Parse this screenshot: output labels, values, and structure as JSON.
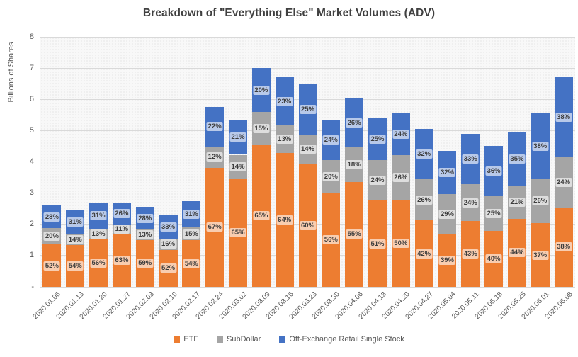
{
  "chart_data": {
    "type": "bar",
    "stacked": true,
    "title": "Breakdown of \"Everything Else\" Market Volumes (ADV)",
    "xlabel": "",
    "ylabel": "Billions of Shares",
    "ylim": [
      0,
      8
    ],
    "ytick_labels_bottom_to_top": [
      "-",
      "1",
      "2",
      "3",
      "4",
      "5",
      "6",
      "7",
      "8"
    ],
    "grid": "horizontal",
    "legend_position": "bottom",
    "categories": [
      "2020.01.06",
      "2020.01.13",
      "2020.01.20",
      "2020.01.27",
      "2020.02.03",
      "2020.02.10",
      "2020.02.17",
      "2020.02.24",
      "2020.03.02",
      "2020.03.09",
      "2020.03.16",
      "2020.03.23",
      "2020.03.30",
      "2020.04.06",
      "2020.04.13",
      "2020.04.20",
      "2020.04.27",
      "2020.05.04",
      "2020.05.11",
      "2020.05.18",
      "2020.05.25",
      "2020.06.01",
      "2020.06.08"
    ],
    "totals_billions": [
      2.6,
      2.45,
      2.7,
      2.7,
      2.55,
      2.3,
      2.75,
      5.75,
      5.35,
      7.0,
      6.7,
      6.5,
      5.35,
      6.05,
      5.4,
      5.55,
      5.05,
      4.35,
      4.9,
      4.5,
      4.95,
      5.55,
      6.7
    ],
    "series": [
      {
        "name": "ETF",
        "color": "#ED7D31",
        "pct": [
          52,
          54,
          56,
          63,
          59,
          52,
          54,
          67,
          65,
          65,
          64,
          60,
          56,
          55,
          51,
          50,
          42,
          39,
          43,
          40,
          44,
          37,
          38
        ],
        "pct_labels": [
          "52%",
          "54%",
          "56%",
          "63%",
          "59%",
          "52%",
          "54%",
          "67%",
          "65%",
          "65%",
          "64%",
          "60%",
          "56%",
          "55%",
          "51%",
          "50%",
          "42%",
          "39%",
          "43%",
          "40%",
          "44%",
          "37%",
          "38%"
        ],
        "values_billions": [
          1.35,
          1.32,
          1.51,
          1.7,
          1.5,
          1.2,
          1.49,
          3.85,
          3.48,
          4.55,
          4.29,
          3.9,
          3.0,
          3.33,
          2.75,
          2.78,
          2.12,
          1.7,
          2.11,
          1.8,
          2.18,
          2.05,
          2.55
        ]
      },
      {
        "name": "SubDollar",
        "color": "#A5A5A5",
        "pct": [
          20,
          14,
          13,
          11,
          13,
          16,
          15,
          12,
          14,
          15,
          13,
          14,
          20,
          18,
          24,
          26,
          26,
          29,
          24,
          25,
          21,
          26,
          24
        ],
        "pct_labels": [
          "20%",
          "14%",
          "13%",
          "11%",
          "13%",
          "16%",
          "15%",
          "12%",
          "14%",
          "15%",
          "13%",
          "14%",
          "20%",
          "18%",
          "24%",
          "26%",
          "26%",
          "29%",
          "24%",
          "25%",
          "21%",
          "26%",
          "24%"
        ],
        "values_billions": [
          0.52,
          0.34,
          0.35,
          0.3,
          0.33,
          0.37,
          0.41,
          0.69,
          0.75,
          1.05,
          0.87,
          0.91,
          1.07,
          1.09,
          1.3,
          1.44,
          1.31,
          1.26,
          1.18,
          1.13,
          1.04,
          1.44,
          1.61
        ]
      },
      {
        "name": "Off-Exchange Retail Single Stock",
        "color": "#4472C4",
        "pct": [
          28,
          31,
          31,
          26,
          28,
          33,
          31,
          22,
          21,
          20,
          23,
          25,
          24,
          26,
          25,
          24,
          32,
          32,
          33,
          36,
          35,
          38,
          38
        ],
        "pct_labels": [
          "28%",
          "31%",
          "31%",
          "26%",
          "28%",
          "33%",
          "31%",
          "22%",
          "21%",
          "20%",
          "23%",
          "25%",
          "24%",
          "26%",
          "25%",
          "24%",
          "32%",
          "32%",
          "33%",
          "36%",
          "35%",
          "38%",
          "38%"
        ],
        "values_billions": [
          0.73,
          0.76,
          0.84,
          0.7,
          0.71,
          0.76,
          0.85,
          1.27,
          1.12,
          1.4,
          1.54,
          1.63,
          1.28,
          1.57,
          1.35,
          1.33,
          1.62,
          1.39,
          1.62,
          1.62,
          1.73,
          2.11,
          2.55
        ]
      }
    ]
  }
}
